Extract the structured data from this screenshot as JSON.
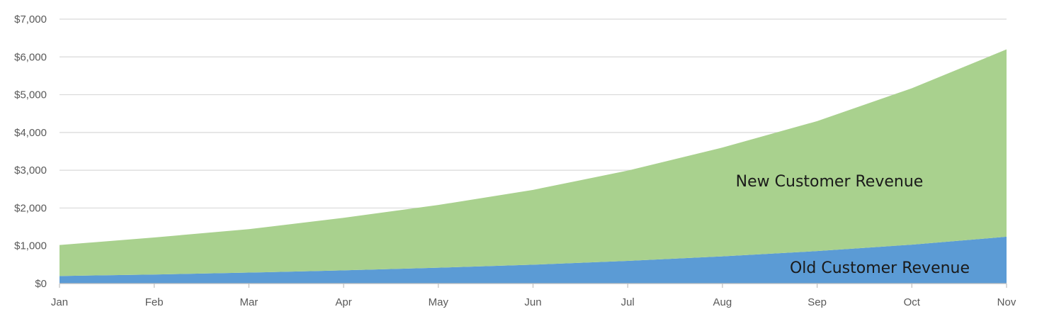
{
  "chart_data": {
    "type": "area",
    "stacked": true,
    "categories": [
      "Jan",
      "Feb",
      "Mar",
      "Apr",
      "May",
      "Jun",
      "Jul",
      "Aug",
      "Sep",
      "Oct",
      "Nov"
    ],
    "series": [
      {
        "name": "Old Customer Revenue",
        "color": "#5b9bd5",
        "values": [
          200,
          240,
          290,
          350,
          420,
          500,
          600,
          720,
          860,
          1030,
          1240
        ]
      },
      {
        "name": "New Customer Revenue",
        "color": "#a9d18e",
        "values": [
          820,
          980,
          1150,
          1390,
          1660,
          1980,
          2390,
          2880,
          3440,
          4140,
          4960
        ]
      }
    ],
    "y_ticks": [
      "$0",
      "$1,000",
      "$2,000",
      "$3,000",
      "$4,000",
      "$5,000",
      "$6,000",
      "$7,000"
    ],
    "ylim": [
      0,
      7000
    ],
    "grid": true,
    "legend": "none"
  }
}
